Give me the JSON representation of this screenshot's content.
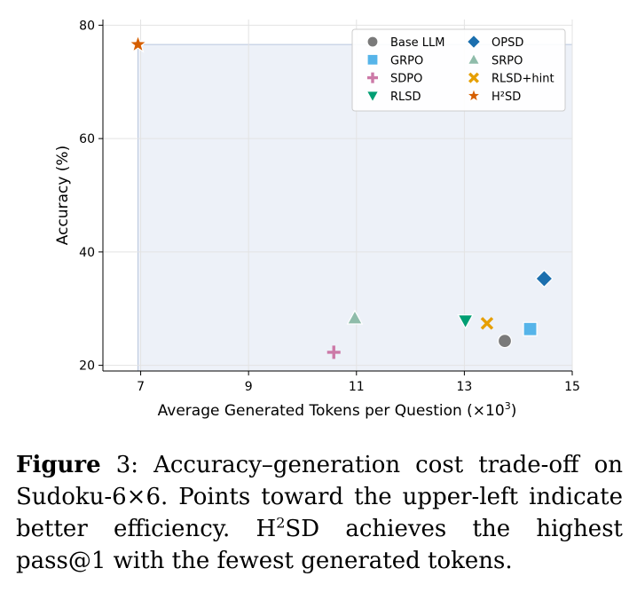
{
  "chart_data": {
    "type": "scatter",
    "xlabel": "Average Generated Tokens per Question (×10",
    "xlabel_sup": "3",
    "xlabel_end": ")",
    "ylabel": "Accuracy (%)",
    "xlim": [
      6.3,
      15.0
    ],
    "ylim": [
      19.0,
      81.0
    ],
    "xticks": [
      7,
      9,
      11,
      13,
      15
    ],
    "yticks": [
      20,
      40,
      60,
      80
    ],
    "grid": true,
    "legend_position": "top-right",
    "shaded_region": {
      "x": [
        6.95,
        15.0
      ],
      "y": [
        19.0,
        76.6
      ]
    },
    "series": [
      {
        "name": "Base LLM",
        "marker": "circle",
        "color": "#7a7a7a",
        "x": 13.75,
        "y": 24.3
      },
      {
        "name": "OPSD",
        "marker": "diamond",
        "color": "#1b6fae",
        "x": 14.48,
        "y": 35.3
      },
      {
        "name": "GRPO",
        "marker": "square",
        "color": "#56b4e9",
        "x": 14.22,
        "y": 26.4
      },
      {
        "name": "SRPO",
        "marker": "triangle-up",
        "color": "#8fbcaa",
        "x": 10.97,
        "y": 28.3
      },
      {
        "name": "SDPO",
        "marker": "plus",
        "color": "#cc79a7",
        "x": 10.58,
        "y": 22.3
      },
      {
        "name": "RLSD+hint",
        "marker": "x",
        "color": "#e69f00",
        "x": 13.42,
        "y": 27.4
      },
      {
        "name": "RLSD",
        "marker": "triangle-down",
        "color": "#009e73",
        "x": 13.02,
        "y": 27.9
      },
      {
        "name": "H²SD",
        "marker": "star",
        "color": "#d55e00",
        "x": 6.95,
        "y": 76.6
      }
    ]
  },
  "caption": {
    "figure_label": "Figure",
    "number": " 3: ",
    "text_part1": "Accuracy–generation cost trade-off on Sudoku-6×6. Points toward the upper-left indicate better efficiency. H",
    "sup": "2",
    "text_part2": "SD achieves the highest pass@1 with the fewest generated tokens."
  }
}
